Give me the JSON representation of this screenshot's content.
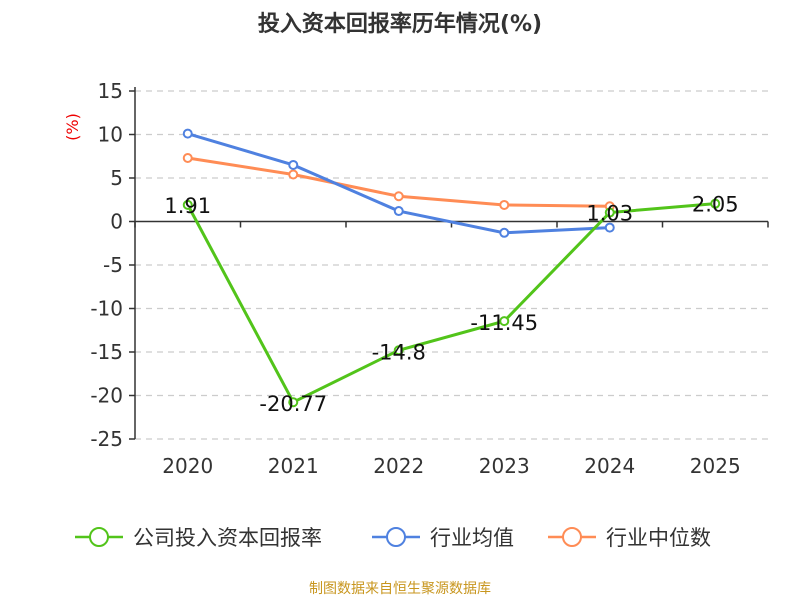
{
  "chart_data": {
    "type": "line",
    "title": "投入资本回报率历年情况(%)",
    "ylabel": "(%)",
    "xlabel": "",
    "categories": [
      "2020",
      "2021",
      "2022",
      "2023",
      "2024",
      "2025"
    ],
    "ylim": [
      -25,
      15
    ],
    "yticks": [
      15,
      10,
      5,
      0,
      -5,
      -10,
      -15,
      -20,
      -25
    ],
    "ytick_labels": [
      "15",
      "10",
      "5",
      "0",
      "-5",
      "-10",
      "-15",
      "-20",
      "-25"
    ],
    "grid": true,
    "legend_position": "bottom",
    "series": [
      {
        "name": "公司投入资本回报率",
        "color": "#52c41a",
        "values": [
          1.91,
          -20.77,
          -14.8,
          -11.45,
          1.03,
          2.05
        ],
        "labels": [
          "1.91",
          "-20.77",
          "-14.8",
          "-11.45",
          "1.03",
          "2.05"
        ]
      },
      {
        "name": "行业均值",
        "color": "#4f81e0",
        "values": [
          10.1,
          6.5,
          1.2,
          -1.3,
          -0.7,
          null
        ]
      },
      {
        "name": "行业中位数",
        "color": "#ff8c55",
        "values": [
          7.3,
          5.4,
          2.9,
          1.9,
          1.75,
          null
        ]
      }
    ]
  },
  "source": "制图数据来自恒生聚源数据库"
}
